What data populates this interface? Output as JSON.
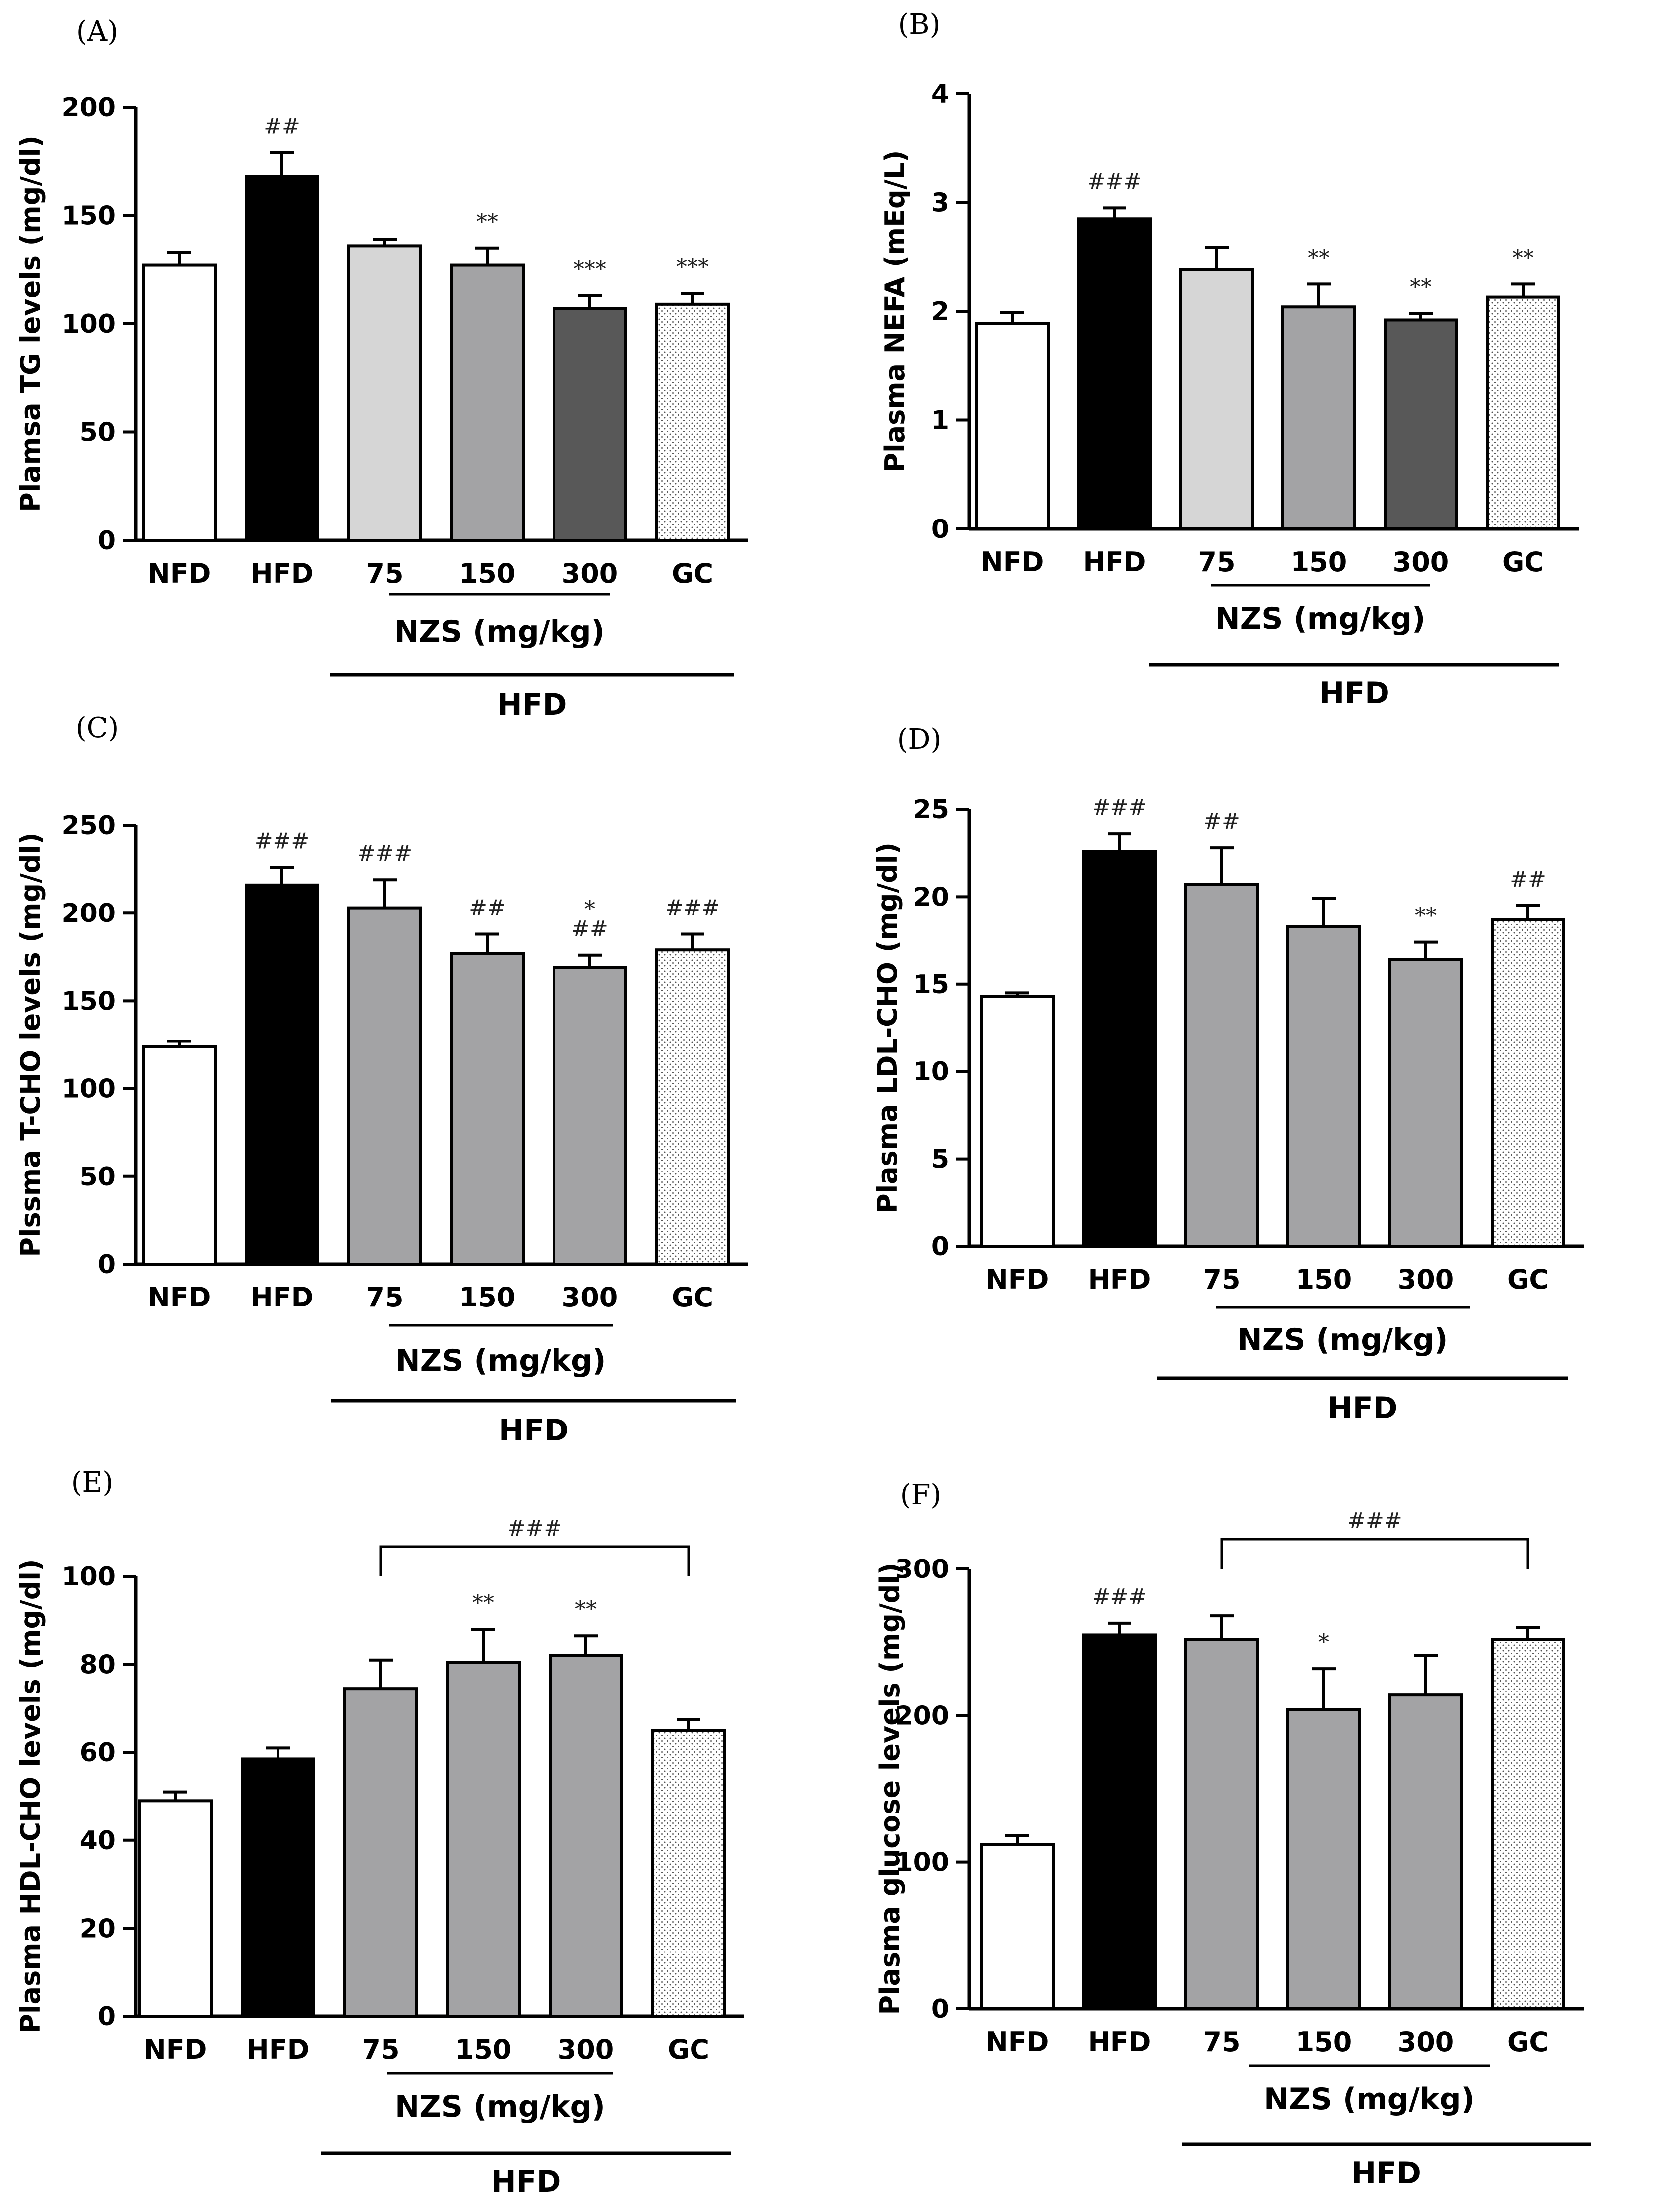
{
  "figure": {
    "patterns": {
      "dots": "fine-dot-stipple"
    },
    "colors": {
      "white": "#ffffff",
      "black": "#000000",
      "light_gray": "#d6d6d6",
      "mid_gray": "#a3a3a5",
      "dark_gray": "#585858",
      "gc": "dots"
    }
  },
  "chart_data": [
    {
      "panel": "(A)",
      "type": "bar",
      "ylabel": "Plamsa TG levels (mg/dl)",
      "ylim": [
        0,
        200
      ],
      "yticks": [
        0,
        50,
        100,
        150,
        200
      ],
      "categories": [
        "NFD",
        "HFD",
        "75",
        "150",
        "300",
        "GC"
      ],
      "values": [
        127,
        168,
        136,
        127,
        107,
        109
      ],
      "errors": [
        6,
        11,
        3,
        8,
        6,
        5
      ],
      "fills": [
        "white",
        "black",
        "light_gray",
        "mid_gray",
        "dark_gray",
        "gc"
      ],
      "annotations": [
        [],
        [
          "##"
        ],
        [],
        [
          "**"
        ],
        [
          "***"
        ],
        [
          "***"
        ]
      ],
      "group_label_1": "NZS (mg/kg)",
      "group_label_2": "HFD"
    },
    {
      "panel": "(B)",
      "type": "bar",
      "ylabel": "Plasma NEFA (mEq/L)",
      "ylim": [
        0,
        4
      ],
      "yticks": [
        0,
        1,
        2,
        3,
        4
      ],
      "categories": [
        "NFD",
        "HFD",
        "75",
        "150",
        "300",
        "GC"
      ],
      "values": [
        1.89,
        2.85,
        2.38,
        2.04,
        1.92,
        2.13
      ],
      "errors": [
        0.1,
        0.1,
        0.21,
        0.21,
        0.06,
        0.12
      ],
      "fills": [
        "white",
        "black",
        "light_gray",
        "mid_gray",
        "dark_gray",
        "gc"
      ],
      "annotations": [
        [],
        [
          "###"
        ],
        [],
        [
          "**"
        ],
        [
          "**"
        ],
        [
          "**"
        ]
      ],
      "group_label_1": "NZS (mg/kg)",
      "group_label_2": "HFD"
    },
    {
      "panel": "(C)",
      "type": "bar",
      "ylabel": "Plssma T-CHO levels (mg/dl)",
      "ylim": [
        0,
        250
      ],
      "yticks": [
        0,
        50,
        100,
        150,
        200,
        250
      ],
      "categories": [
        "NFD",
        "HFD",
        "75",
        "150",
        "300",
        "GC"
      ],
      "values": [
        124,
        216,
        203,
        177,
        169,
        179
      ],
      "errors": [
        3,
        10,
        16,
        11,
        7,
        9
      ],
      "fills": [
        "white",
        "black",
        "mid_gray",
        "mid_gray",
        "mid_gray",
        "gc"
      ],
      "annotations": [
        [],
        [
          "###"
        ],
        [
          "###"
        ],
        [
          "##"
        ],
        [
          "##",
          "*"
        ],
        [
          "###"
        ]
      ],
      "group_label_1": "NZS (mg/kg)",
      "group_label_2": "HFD"
    },
    {
      "panel": "(D)",
      "type": "bar",
      "ylabel": "Plasma LDL-CHO (mg/dl)",
      "ylim": [
        0,
        25
      ],
      "yticks": [
        0,
        5,
        10,
        15,
        20,
        25
      ],
      "categories": [
        "NFD",
        "HFD",
        "75",
        "150",
        "300",
        "GC"
      ],
      "values": [
        14.3,
        22.6,
        20.7,
        18.3,
        16.4,
        18.7
      ],
      "errors": [
        0.2,
        1.0,
        2.1,
        1.6,
        1.0,
        0.8
      ],
      "fills": [
        "white",
        "black",
        "mid_gray",
        "mid_gray",
        "mid_gray",
        "gc"
      ],
      "annotations": [
        [],
        [
          "###"
        ],
        [
          "##"
        ],
        [],
        [
          "**"
        ],
        [
          "##"
        ]
      ],
      "group_label_1": "NZS (mg/kg)",
      "group_label_2": "HFD"
    },
    {
      "panel": "(E)",
      "type": "bar",
      "ylabel": "Plasma HDL-CHO levels (mg/dl)",
      "ylim": [
        0,
        100
      ],
      "yticks": [
        0,
        20,
        40,
        60,
        80,
        100
      ],
      "categories": [
        "NFD",
        "HFD",
        "75",
        "150",
        "300",
        "GC"
      ],
      "values": [
        49,
        58.5,
        74.5,
        80.5,
        82,
        65
      ],
      "errors": [
        2,
        2.5,
        6.5,
        7.5,
        4.5,
        2.5
      ],
      "fills": [
        "white",
        "black",
        "mid_gray",
        "mid_gray",
        "mid_gray",
        "gc"
      ],
      "annotations": [
        [],
        [],
        [],
        [
          "**"
        ],
        [
          "**"
        ],
        []
      ],
      "bracket": {
        "from": 2,
        "to": 5,
        "label": "###"
      },
      "group_label_1": "NZS (mg/kg)",
      "group_label_2": "HFD"
    },
    {
      "panel": "(F)",
      "type": "bar",
      "ylabel": "Plasma glucose levels (mg/dl)",
      "ylim": [
        0,
        300
      ],
      "yticks": [
        0,
        100,
        200,
        300
      ],
      "categories": [
        "NFD",
        "HFD",
        "75",
        "150",
        "300",
        "GC"
      ],
      "values": [
        112,
        255,
        252,
        204,
        214,
        252
      ],
      "errors": [
        6,
        8,
        16,
        28,
        27,
        8
      ],
      "fills": [
        "white",
        "black",
        "mid_gray",
        "mid_gray",
        "mid_gray",
        "gc"
      ],
      "annotations": [
        [],
        [
          "###"
        ],
        [],
        [
          "*"
        ],
        [],
        []
      ],
      "bracket": {
        "from": 2,
        "to": 5,
        "label": "###"
      },
      "group_label_1": "NZS (mg/kg)",
      "group_label_2": "HFD"
    }
  ]
}
